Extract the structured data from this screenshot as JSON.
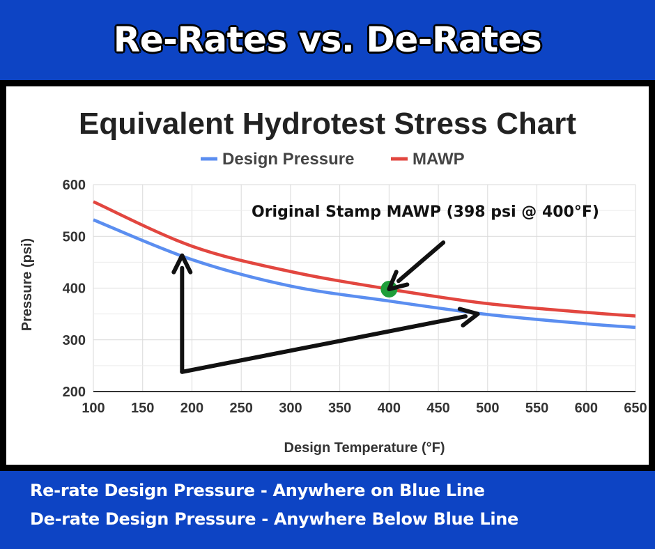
{
  "banner": {
    "title": "Re-Rates vs. De-Rates"
  },
  "captions": [
    "Re-rate Design Pressure - Anywhere on Blue Line",
    "De-rate Design Pressure - Anywhere Below Blue Line"
  ],
  "colors": {
    "banner_bg": "#0d44c4",
    "design_pressure": "#5b8ef0",
    "mawp": "#e2463f",
    "marker": "#1f9e3a",
    "arrow": "#111111"
  },
  "chart_data": {
    "type": "line",
    "title": "Equivalent Hydrotest Stress Chart",
    "xlabel": "Design Temperature (°F)",
    "ylabel": "Pressure (psi)",
    "xlim": [
      100,
      650
    ],
    "ylim": [
      200,
      600
    ],
    "xticks": [
      "100",
      "150",
      "200",
      "250",
      "300",
      "350",
      "400",
      "450",
      "500",
      "550",
      "600",
      "650"
    ],
    "yticks": [
      "600",
      "500",
      "400",
      "300",
      "200"
    ],
    "grid": true,
    "legend_position": "top-center",
    "series": [
      {
        "name": "Design Pressure",
        "color": "#5b8ef0",
        "x": [
          100,
          200,
          300,
          400,
          500,
          600,
          650
        ],
        "y": [
          532,
          455,
          404,
          375,
          349,
          331,
          324
        ]
      },
      {
        "name": "MAWP",
        "color": "#e2463f",
        "x": [
          100,
          200,
          300,
          400,
          500,
          600,
          650
        ],
        "y": [
          567,
          481,
          432,
          398,
          370,
          353,
          346
        ]
      }
    ],
    "marker": {
      "x": 400,
      "y": 398,
      "label": "Original Stamp MAWP (398 psi @ 400°F)"
    },
    "arrows": [
      {
        "from": [
          190,
          238
        ],
        "to": [
          190,
          463
        ]
      },
      {
        "from": [
          190,
          238
        ],
        "to": [
          490,
          350
        ]
      },
      {
        "from": [
          455,
          488
        ],
        "to": [
          400,
          398
        ]
      }
    ]
  }
}
